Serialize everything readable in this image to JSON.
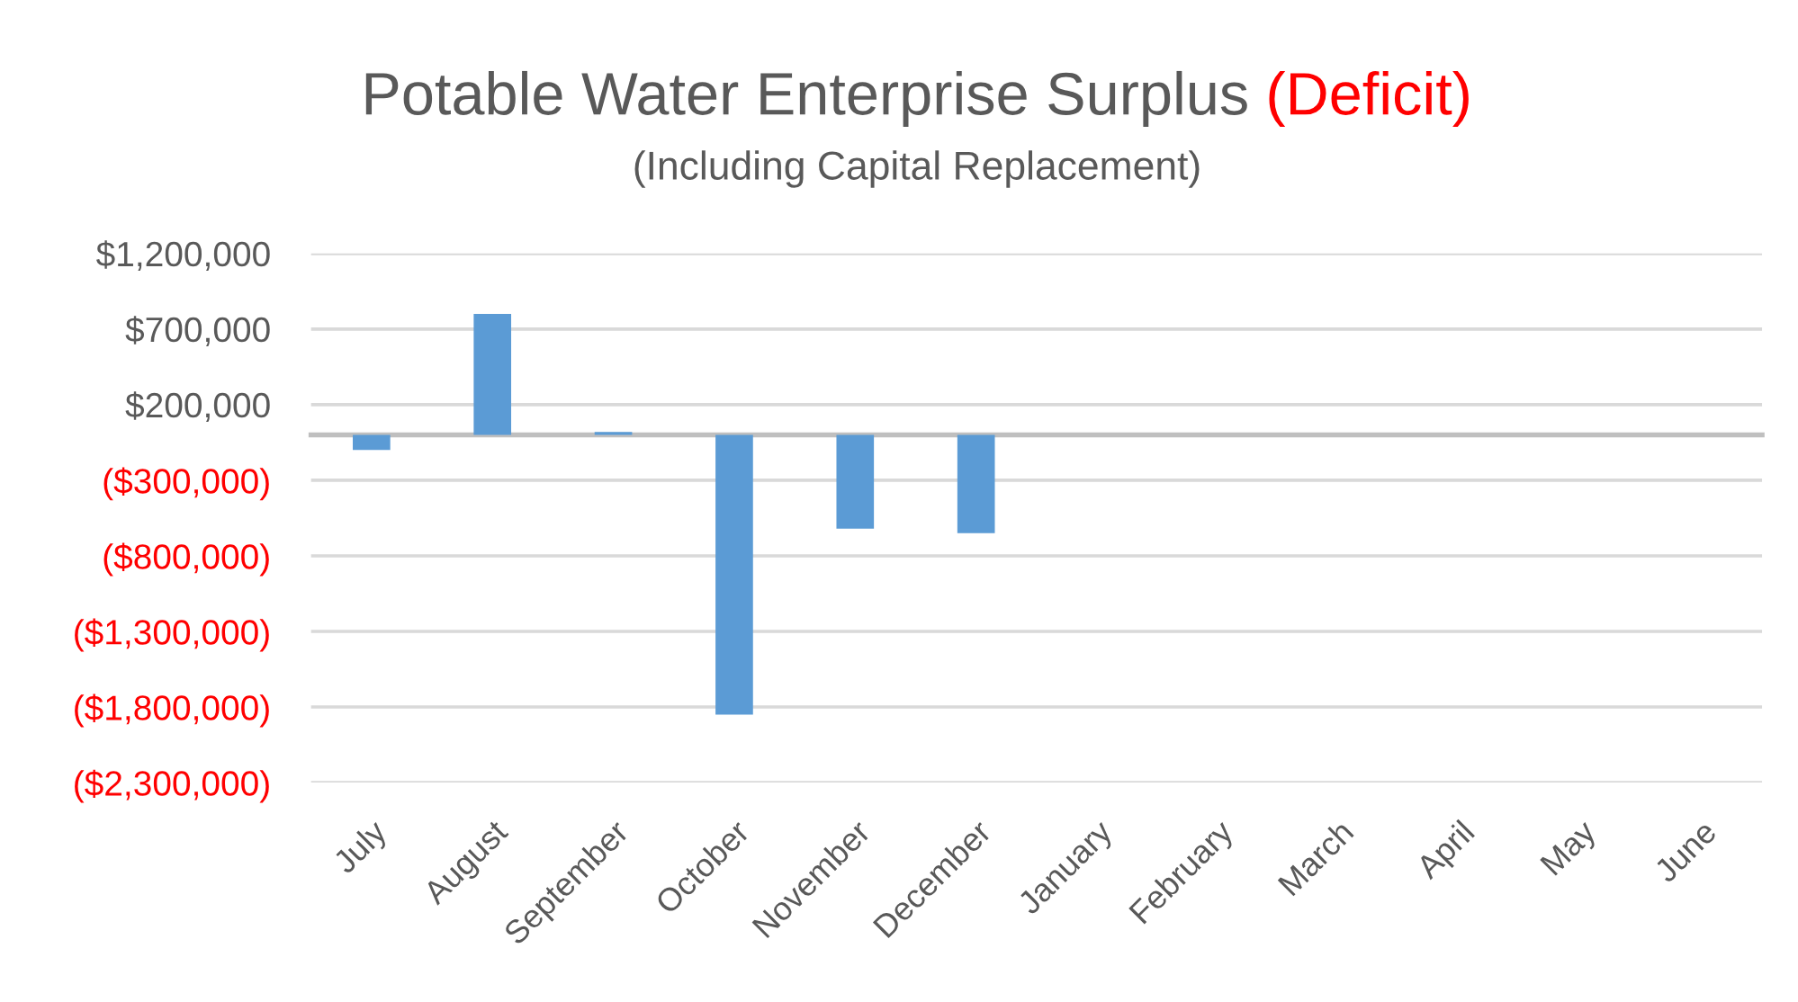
{
  "chart_data": {
    "type": "bar",
    "title": "Potable Water Enterprise Surplus (Deficit)",
    "subtitle": "(Including Capital Replacement)",
    "categories": [
      "July",
      "August",
      "September",
      "October",
      "November",
      "December",
      "January",
      "February",
      "March",
      "April",
      "May",
      "June"
    ],
    "values": [
      -100000,
      800000,
      20000,
      -1850000,
      -620000,
      -650000,
      null,
      null,
      null,
      null,
      null,
      null
    ],
    "color": "#5b9bd5",
    "ylim": [
      -2300000,
      1200000
    ],
    "yticks": [
      {
        "value": 1200000,
        "label": "$1,200,000"
      },
      {
        "value": 700000,
        "label": "$700,000"
      },
      {
        "value": 200000,
        "label": "$200,000"
      },
      {
        "value": -300000,
        "label": "($300,000)"
      },
      {
        "value": -800000,
        "label": "($800,000)"
      },
      {
        "value": -1300000,
        "label": "($1,300,000)"
      },
      {
        "value": -1800000,
        "label": "($1,800,000)"
      },
      {
        "value": -2300000,
        "label": "($2,300,000)"
      }
    ],
    "grid": "y",
    "legend": false
  }
}
